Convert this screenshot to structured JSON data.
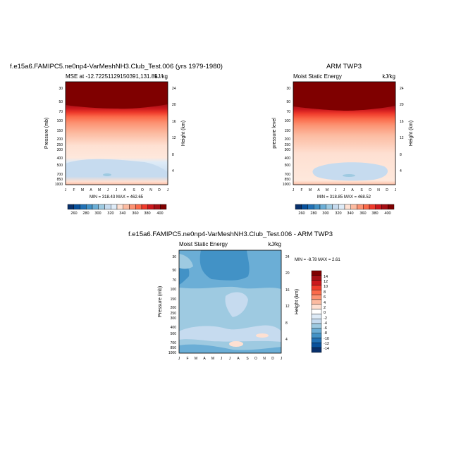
{
  "chart_data": [
    {
      "type": "heatmap",
      "title": "f.e15a6.FAMIPC5.ne0np4-VarMeshNH3.Club_Test.006 (yrs 1979-1980)",
      "subtitle": "MSE at -12.72251129150391,131.85",
      "units": "kJ/kg",
      "xlabel": "",
      "ylabel": "Pressure (mb)",
      "ylabel_right": "Height (km)",
      "x_ticks": [
        "J",
        "F",
        "M",
        "A",
        "M",
        "J",
        "J",
        "A",
        "S",
        "O",
        "N",
        "D",
        "J"
      ],
      "y_ticks": [
        "30",
        "50",
        "70",
        "100",
        "150",
        "200",
        "250",
        "300",
        "400",
        "500",
        "700",
        "850",
        "1000"
      ],
      "y_ticks_right": [
        "24",
        "20",
        "16",
        "12",
        "8",
        "4"
      ],
      "stats": "MIN = 318.43 MAX = 462.65",
      "colorbar_labels": [
        "260",
        "280",
        "300",
        "320",
        "340",
        "360",
        "380",
        "400"
      ]
    },
    {
      "type": "heatmap",
      "title": "ARM TWP3",
      "subtitle": "Moist Static Energy",
      "units": "kJ/kg",
      "xlabel": "",
      "ylabel": "pressure level",
      "ylabel_right": "Height (km)",
      "x_ticks": [
        "J",
        "F",
        "M",
        "A",
        "M",
        "J",
        "J",
        "A",
        "S",
        "O",
        "N",
        "D",
        "J"
      ],
      "y_ticks": [
        "30",
        "50",
        "70",
        "100",
        "150",
        "200",
        "250",
        "300",
        "400",
        "500",
        "700",
        "850",
        "1000"
      ],
      "y_ticks_right": [
        "24",
        "20",
        "16",
        "12",
        "8",
        "4"
      ],
      "stats": "MIN = 318.85 MAX = 468.52",
      "colorbar_labels": [
        "260",
        "280",
        "300",
        "320",
        "340",
        "360",
        "380",
        "400"
      ]
    },
    {
      "type": "heatmap",
      "title": "f.e15a6.FAMIPC5.ne0np4-VarMeshNH3.Club_Test.006 - ARM TWP3",
      "subtitle": "Moist Static Energy",
      "units": "kJ/kg",
      "xlabel": "",
      "ylabel": "Pressure (mb)",
      "ylabel_right": "Height (km)",
      "x_ticks": [
        "J",
        "F",
        "M",
        "A",
        "M",
        "J",
        "J",
        "A",
        "S",
        "O",
        "N",
        "D",
        "J"
      ],
      "y_ticks": [
        "30",
        "50",
        "70",
        "100",
        "150",
        "200",
        "250",
        "300",
        "400",
        "500",
        "700",
        "850",
        "1000"
      ],
      "y_ticks_right": [
        "24",
        "20",
        "16",
        "12",
        "8",
        "4"
      ],
      "stats": "MIN =  -8.78 MAX =   2.61",
      "colorbar_labels": [
        "14",
        "12",
        "10",
        "8",
        "6",
        "4",
        "2",
        "0",
        "-2",
        "-4",
        "-6",
        "-8",
        "-10",
        "-12",
        "-14"
      ]
    }
  ],
  "colors": {
    "mse_scale": [
      "#08306b",
      "#08519c",
      "#2171b5",
      "#4292c6",
      "#6baed6",
      "#9ecae1",
      "#c6dbef",
      "#deebf7",
      "#fee0d2",
      "#fcbba1",
      "#fc9272",
      "#fb6a4a",
      "#ef3b2c",
      "#cb181d",
      "#a50f15",
      "#7f0000"
    ],
    "diff_scale": [
      "#7f0000",
      "#a50f15",
      "#cb181d",
      "#ef3b2c",
      "#fb6a4a",
      "#fc9272",
      "#fcbba1",
      "#fee0d2",
      "#ffffff",
      "#deebf7",
      "#c6dbef",
      "#9ecae1",
      "#6baed6",
      "#4292c6",
      "#2171b5",
      "#08519c",
      "#08306b"
    ]
  }
}
